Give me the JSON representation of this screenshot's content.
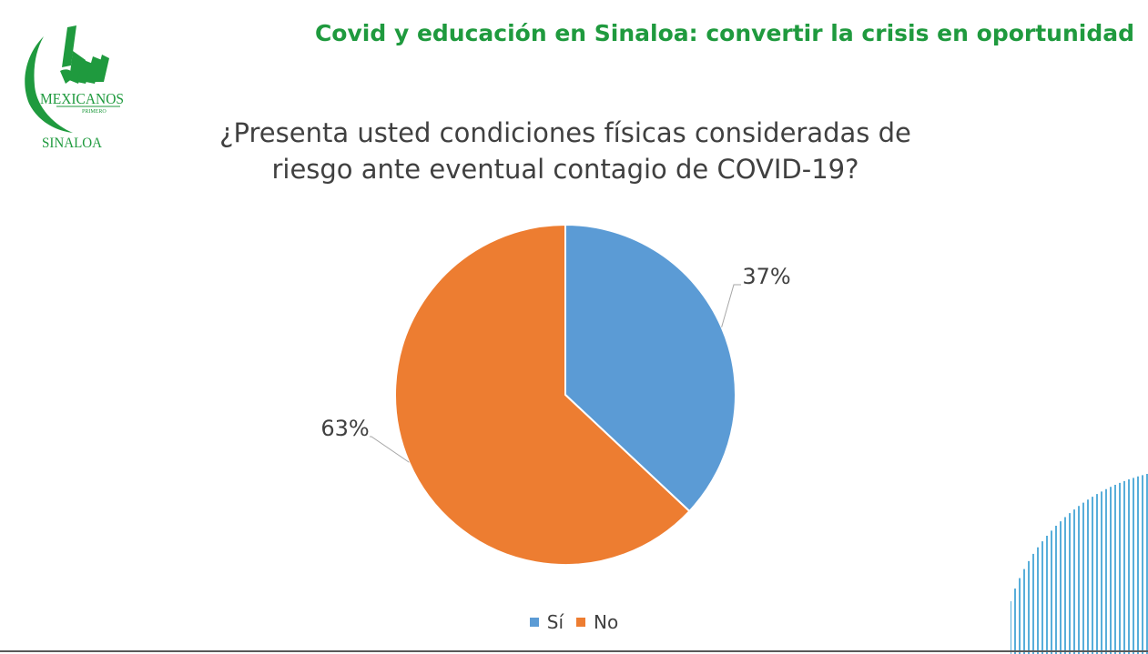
{
  "header": {
    "title": "Covid y educación en Sinaloa: convertir la crisis en oportunidad"
  },
  "logo": {
    "text_line1": "MEXICANOS",
    "text_line2": "PRIMERO",
    "text_line3": "SINALOA",
    "color": "#1f9a3e"
  },
  "chart_data": {
    "type": "pie",
    "title_lines": [
      "¿Presenta usted condiciones físicas consideradas de",
      "riesgo ante eventual contagio de COVID-19?"
    ],
    "categories": [
      "Sí",
      "No"
    ],
    "values": [
      37,
      63
    ],
    "data_labels": [
      "37%",
      "63%"
    ],
    "colors": [
      "#5b9bd5",
      "#ed7d31"
    ],
    "legend_position": "bottom"
  },
  "colors": {
    "brand_green": "#1f9a3e",
    "decor_blue": "#2e9ad0"
  }
}
